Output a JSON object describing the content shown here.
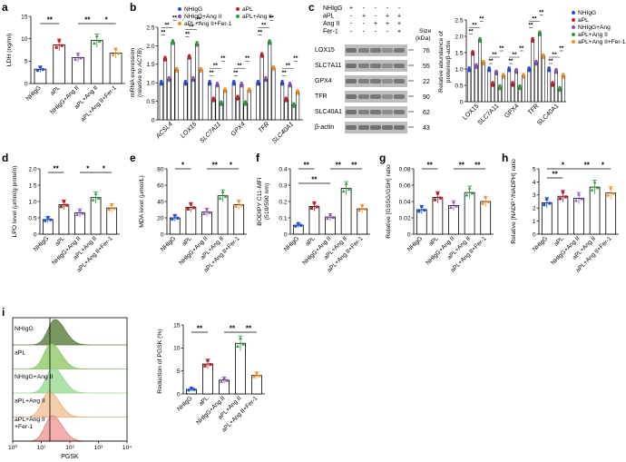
{
  "groups": [
    "NHIgG",
    "aPL",
    "NHIgG+Ang II",
    "aPL+Ang II",
    "aPL+Ang II+Fer-1"
  ],
  "colors": {
    "NHIgG": "#1f4fd8",
    "aPL": "#c0222a",
    "NHIgG+Ang II": "#8b52b8",
    "aPL+Ang II": "#2e9e3e",
    "aPL+Ang II+Fer-1": "#ef8f24"
  },
  "sig": {
    "double": "**",
    "single": "*"
  },
  "panels": {
    "a": {
      "letter": "a",
      "ylabel": "LDH (ng/ml)"
    },
    "b": {
      "letter": "b",
      "ylabel_line1": "mRNA expression",
      "ylabel_line2": "(relative to ",
      "ylabel_gene": "ACTB",
      "ylabel_close": ")"
    },
    "c": {
      "letter": "c",
      "ylabel_line1": "Relative abundance of",
      "ylabel_line2": "proteins/β-actin",
      "size_header_line1": "Size",
      "size_header_line2": "(kDa)"
    },
    "d": {
      "letter": "d",
      "ylabel": "LPO level (μmol/g protein)"
    },
    "e": {
      "letter": "e",
      "ylabel": "MDA level (μmol/L)"
    },
    "f": {
      "letter": "f",
      "ylabel_line1": "BODIPY C11-MFI",
      "ylabel_line2": "(510/590 nm)"
    },
    "g": {
      "letter": "g",
      "ylabel": "Relative [GSSG/GSH] ratio"
    },
    "h": {
      "letter": "h",
      "ylabel": "Relative [NADP⁺/NADPH] ratio"
    },
    "i": {
      "letter": "i",
      "xlabel": "PGSK",
      "ylabel": "Reduction of PGSK (%)"
    }
  },
  "legend_b": [
    "NHIgG",
    "aPL",
    "NHIgG+Ang II",
    "aPL+Ang II",
    "aPL+Ang II+Fer-1"
  ],
  "legend_c": [
    "NHIgG",
    "aPL",
    "NHIgG+Ang",
    "aPL+Ang II",
    "aPL+Ang II+Fer-1"
  ],
  "blot": {
    "conditions": [
      "NHIgG",
      "aPL",
      "Ang II",
      "Fer-1"
    ],
    "signs": [
      [
        "+",
        "-",
        "-",
        "-",
        "-"
      ],
      [
        "-",
        "+",
        "-",
        "+",
        "+"
      ],
      [
        "-",
        "-",
        "+",
        "+",
        "+"
      ],
      [
        "-",
        "-",
        "-",
        "-",
        "+"
      ]
    ],
    "bands": [
      "LOX15",
      "SLC7A11",
      "GPX4",
      "TFR",
      "SLC40A1",
      "β-actin"
    ],
    "sizes": [
      "76",
      "55",
      "22",
      "90",
      "62",
      "43"
    ]
  },
  "flow_labels": [
    "NHIgG",
    "aPL",
    "NHIgG+Ang II",
    "aPL+Ang II",
    "aPL+Ang II\n+Fer-1"
  ],
  "chart_data": [
    {
      "panel": "a",
      "type": "bar",
      "categories": [
        "NHIgG",
        "aPL",
        "NHIgG+Ang II",
        "aPL+Ang II",
        "aPL+Ang II+Fer-1"
      ],
      "values": [
        3.2,
        8.6,
        5.8,
        9.6,
        6.8
      ],
      "ylim": [
        0,
        15
      ],
      "yticks": [
        0,
        5,
        10,
        15
      ],
      "ylabel": "LDH (ng/ml)",
      "significance": [
        {
          "from": 0,
          "to": 1,
          "label": "**"
        },
        {
          "from": 2,
          "to": 3,
          "label": "**"
        },
        {
          "from": 3,
          "to": 4,
          "label": "*"
        }
      ]
    },
    {
      "panel": "b",
      "type": "bar",
      "categories": [
        "ACSL4",
        "LOX15",
        "SLC7A11",
        "GPX4",
        "TFR",
        "SLC40A1"
      ],
      "ylim": [
        0,
        2.5
      ],
      "yticks": [
        0,
        0.5,
        1.0,
        1.5,
        2.0,
        2.5
      ],
      "ylabel": "mRNA expression (relative to ACTB)",
      "series": [
        {
          "name": "NHIgG",
          "values": [
            1.0,
            1.0,
            1.0,
            1.0,
            1.0,
            1.0
          ]
        },
        {
          "name": "aPL",
          "values": [
            1.65,
            1.7,
            0.55,
            0.6,
            1.75,
            0.55
          ]
        },
        {
          "name": "NHIgG+Ang II",
          "values": [
            1.1,
            1.1,
            0.95,
            0.95,
            1.1,
            0.95
          ]
        },
        {
          "name": "aPL+Ang II",
          "values": [
            2.1,
            2.05,
            0.45,
            0.45,
            2.1,
            0.4
          ]
        },
        {
          "name": "aPL+Ang II+Fer-1",
          "values": [
            1.35,
            1.35,
            0.8,
            0.8,
            1.4,
            0.75
          ]
        }
      ]
    },
    {
      "panel": "c",
      "type": "bar",
      "categories": [
        "LOX15",
        "SLC7A11",
        "GPX4",
        "TFR",
        "SLC40A1"
      ],
      "ylim": [
        0,
        2.5
      ],
      "yticks": [
        0,
        0.5,
        1.0,
        1.5,
        2.0,
        2.5
      ],
      "ylabel": "Relative abundance of proteins/β-actin",
      "series": [
        {
          "name": "NHIgG",
          "values": [
            1.0,
            1.0,
            1.0,
            1.0,
            1.0
          ]
        },
        {
          "name": "aPL",
          "values": [
            1.5,
            0.55,
            0.55,
            1.9,
            0.55
          ]
        },
        {
          "name": "NHIgG+Ang",
          "values": [
            1.1,
            0.9,
            0.95,
            1.2,
            0.95
          ]
        },
        {
          "name": "aPL+Ang II",
          "values": [
            1.9,
            0.45,
            0.45,
            2.1,
            0.4
          ]
        },
        {
          "name": "aPL+Ang II+Fer-1",
          "values": [
            1.2,
            0.8,
            0.8,
            1.4,
            0.8
          ]
        }
      ]
    },
    {
      "panel": "d",
      "type": "bar",
      "categories": [
        "NHIgG",
        "aPL",
        "NHIgG+Ang II",
        "aPL+Ang II",
        "aPL+Ang II+Fer-1"
      ],
      "values": [
        0.45,
        0.9,
        0.65,
        1.12,
        0.8
      ],
      "ylim": [
        0,
        2.0
      ],
      "yticks": [
        0,
        0.5,
        1.0,
        1.5,
        2.0
      ],
      "ylabel": "LPO level (μmol/g protein)",
      "significance": [
        {
          "from": 0,
          "to": 1,
          "label": "**"
        },
        {
          "from": 2,
          "to": 3,
          "label": "*"
        },
        {
          "from": 3,
          "to": 4,
          "label": "*"
        }
      ]
    },
    {
      "panel": "e",
      "type": "bar",
      "categories": [
        "NHIgG",
        "aPL",
        "NHIgG+Ang II",
        "aPL+Ang II",
        "aPL+Ang II+Fer-1"
      ],
      "values": [
        20,
        33,
        27,
        47,
        36
      ],
      "ylim": [
        0,
        80
      ],
      "yticks": [
        0,
        20,
        40,
        60,
        80
      ],
      "ylabel": "MDA level (μmol/L)",
      "significance": [
        {
          "from": 0,
          "to": 1,
          "label": "*"
        },
        {
          "from": 2,
          "to": 3,
          "label": "**"
        },
        {
          "from": 3,
          "to": 4,
          "label": "*"
        }
      ]
    },
    {
      "panel": "f",
      "type": "bar",
      "categories": [
        "NHIgG",
        "aPL",
        "NHIgG+Ang II",
        "aPL+Ang II",
        "aPL+Ang II+Fer-1"
      ],
      "values": [
        0.055,
        0.17,
        0.105,
        0.28,
        0.155
      ],
      "ylim": [
        0,
        0.4
      ],
      "yticks": [
        0,
        0.1,
        0.2,
        0.3,
        0.4
      ],
      "ylabel": "BODIPY C11-MFI (510/590 nm)",
      "significance": [
        {
          "from": 0,
          "to": 1,
          "label": "**"
        },
        {
          "from": 0,
          "to": 2,
          "label": "**"
        },
        {
          "from": 2,
          "to": 3,
          "label": "**"
        },
        {
          "from": 3,
          "to": 4,
          "label": "**"
        }
      ]
    },
    {
      "panel": "g",
      "type": "bar",
      "categories": [
        "NHIgG",
        "aPL",
        "NHIgG+Ang II",
        "aPL+Ang II",
        "aPL+Ang II+Fer-1"
      ],
      "values": [
        0.03,
        0.045,
        0.035,
        0.051,
        0.04
      ],
      "ylim": [
        0,
        0.08
      ],
      "yticks": [
        0,
        0.02,
        0.04,
        0.06,
        0.08
      ],
      "ylabel": "Relative [GSSG/GSH] ratio",
      "significance": [
        {
          "from": 0,
          "to": 1,
          "label": "**"
        },
        {
          "from": 2,
          "to": 3,
          "label": "**"
        },
        {
          "from": 3,
          "to": 4,
          "label": "**"
        }
      ]
    },
    {
      "panel": "h",
      "type": "bar",
      "categories": [
        "NHIgG",
        "aPL",
        "NHIgG+Ang II",
        "aPL+Ang II",
        "aPL+Ang II+Fer-1"
      ],
      "values": [
        2.4,
        2.9,
        2.75,
        3.6,
        3.15
      ],
      "ylim": [
        0,
        5
      ],
      "yticks": [
        0,
        1,
        2,
        3,
        4,
        5
      ],
      "ylabel": "Relative [NADP+/NADPH] ratio",
      "significance": [
        {
          "from": 0,
          "to": 2,
          "label": "*"
        },
        {
          "from": 0,
          "to": 1,
          "label": "**"
        },
        {
          "from": 2,
          "to": 3,
          "label": "**"
        },
        {
          "from": 3,
          "to": 4,
          "label": "*"
        }
      ]
    },
    {
      "panel": "i",
      "type": "bar",
      "categories": [
        "NHIgG",
        "aPL",
        "NHIgG+Ang II",
        "aPL+Ang II",
        "aPL+Ang II+Fer-1"
      ],
      "values": [
        1,
        6.5,
        3,
        11,
        4
      ],
      "ylim": [
        0,
        15
      ],
      "yticks": [
        0,
        5,
        10,
        15
      ],
      "ylabel": "Reduction of PGSK (%)",
      "significance": [
        {
          "from": 0,
          "to": 1,
          "label": "**"
        },
        {
          "from": 2,
          "to": 3,
          "label": "**"
        },
        {
          "from": 3,
          "to": 4,
          "label": "**"
        }
      ]
    },
    {
      "panel": "i-flow",
      "type": "area",
      "xlabel": "PGSK",
      "xscale": "log",
      "xlim": [
        1,
        10000
      ],
      "xticks": [
        "10⁰",
        "10¹",
        "10²",
        "10³",
        "10⁴"
      ],
      "peak_positions": [
        30,
        22,
        26,
        19,
        24
      ]
    }
  ]
}
